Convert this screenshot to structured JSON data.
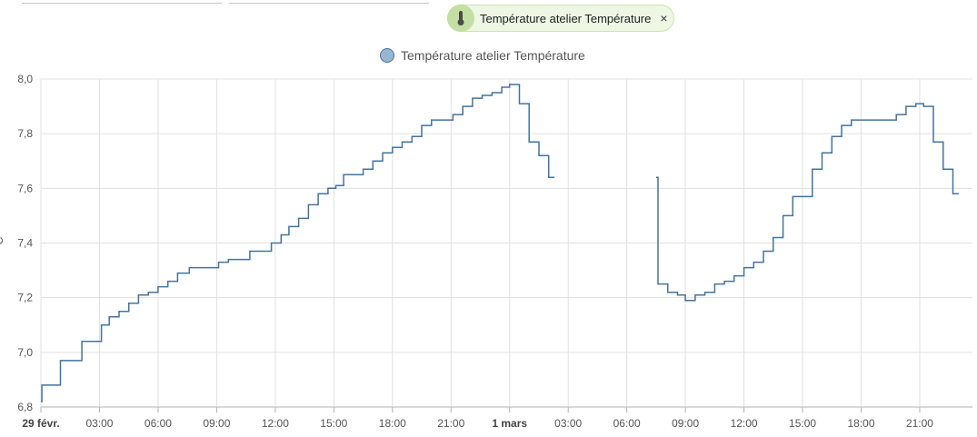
{
  "filter_chip": {
    "label": "Température atelier Température",
    "icon": "thermometer-icon",
    "close_symbol": "×"
  },
  "legend": {
    "label": "Température atelier Température",
    "color": "#44739e"
  },
  "chart_data": {
    "type": "line",
    "title": "",
    "ylabel": "°C",
    "xlabel": "",
    "ylim": [
      6.8,
      8.0
    ],
    "xlim": [
      0,
      47.7
    ],
    "x_unit": "hours since 29 févr. 00:00",
    "y_ticks": [
      "8,0",
      "7,8",
      "7,6",
      "7,4",
      "7,2",
      "7,0",
      "6,8"
    ],
    "y_tick_values": [
      8.0,
      7.8,
      7.6,
      7.4,
      7.2,
      7.0,
      6.8
    ],
    "x_ticks": [
      {
        "label": "29 févr.",
        "value": 0,
        "bold": true
      },
      {
        "label": "03:00",
        "value": 3
      },
      {
        "label": "06:00",
        "value": 6
      },
      {
        "label": "09:00",
        "value": 9
      },
      {
        "label": "12:00",
        "value": 12
      },
      {
        "label": "15:00",
        "value": 15
      },
      {
        "label": "18:00",
        "value": 18
      },
      {
        "label": "21:00",
        "value": 21
      },
      {
        "label": "1 mars",
        "value": 24,
        "bold": true
      },
      {
        "label": "03:00",
        "value": 27
      },
      {
        "label": "06:00",
        "value": 30
      },
      {
        "label": "09:00",
        "value": 33
      },
      {
        "label": "12:00",
        "value": 36
      },
      {
        "label": "15:00",
        "value": 39
      },
      {
        "label": "18:00",
        "value": 42
      },
      {
        "label": "21:00",
        "value": 45
      }
    ],
    "grid": true,
    "step": true,
    "series": [
      {
        "name": "Température atelier Température",
        "color": "#44739e",
        "segments": [
          [
            [
              0.0,
              6.82
            ],
            [
              0.05,
              6.88
            ],
            [
              1.0,
              6.97
            ],
            [
              2.1,
              7.04
            ],
            [
              3.1,
              7.1
            ],
            [
              3.5,
              7.13
            ],
            [
              4.0,
              7.15
            ],
            [
              4.5,
              7.18
            ],
            [
              5.0,
              7.21
            ],
            [
              5.5,
              7.22
            ],
            [
              6.0,
              7.24
            ],
            [
              6.5,
              7.26
            ],
            [
              7.0,
              7.29
            ],
            [
              7.6,
              7.31
            ],
            [
              9.1,
              7.33
            ],
            [
              9.6,
              7.34
            ],
            [
              10.7,
              7.37
            ],
            [
              11.8,
              7.4
            ],
            [
              12.3,
              7.43
            ],
            [
              12.7,
              7.46
            ],
            [
              13.2,
              7.49
            ],
            [
              13.7,
              7.54
            ],
            [
              14.2,
              7.58
            ],
            [
              14.7,
              7.6
            ],
            [
              15.1,
              7.61
            ],
            [
              15.5,
              7.65
            ],
            [
              16.5,
              7.67
            ],
            [
              17.0,
              7.7
            ],
            [
              17.5,
              7.73
            ],
            [
              18.0,
              7.75
            ],
            [
              18.5,
              7.77
            ],
            [
              19.0,
              7.79
            ],
            [
              19.5,
              7.83
            ],
            [
              20.0,
              7.85
            ],
            [
              21.1,
              7.87
            ],
            [
              21.6,
              7.9
            ],
            [
              22.1,
              7.93
            ],
            [
              22.6,
              7.94
            ],
            [
              23.1,
              7.95
            ],
            [
              23.6,
              7.97
            ],
            [
              24.0,
              7.98
            ],
            [
              24.5,
              7.91
            ],
            [
              25.0,
              7.77
            ],
            [
              25.5,
              7.72
            ],
            [
              26.0,
              7.64
            ],
            [
              26.3,
              7.64
            ]
          ],
          [
            [
              31.5,
              7.64
            ],
            [
              31.6,
              7.25
            ],
            [
              32.1,
              7.22
            ],
            [
              32.6,
              7.21
            ],
            [
              33.0,
              7.19
            ],
            [
              33.5,
              7.21
            ],
            [
              34.0,
              7.22
            ],
            [
              34.5,
              7.25
            ],
            [
              35.0,
              7.26
            ],
            [
              35.5,
              7.28
            ],
            [
              36.0,
              7.31
            ],
            [
              36.5,
              7.33
            ],
            [
              37.0,
              7.37
            ],
            [
              37.5,
              7.42
            ],
            [
              38.0,
              7.5
            ],
            [
              38.5,
              7.57
            ],
            [
              39.5,
              7.67
            ],
            [
              40.0,
              7.73
            ],
            [
              40.5,
              7.79
            ],
            [
              41.0,
              7.83
            ],
            [
              41.5,
              7.85
            ],
            [
              43.8,
              7.87
            ],
            [
              44.3,
              7.9
            ],
            [
              44.8,
              7.91
            ],
            [
              45.2,
              7.9
            ],
            [
              45.7,
              7.77
            ],
            [
              46.2,
              7.67
            ],
            [
              46.7,
              7.58
            ],
            [
              47.0,
              7.58
            ]
          ]
        ]
      }
    ]
  }
}
